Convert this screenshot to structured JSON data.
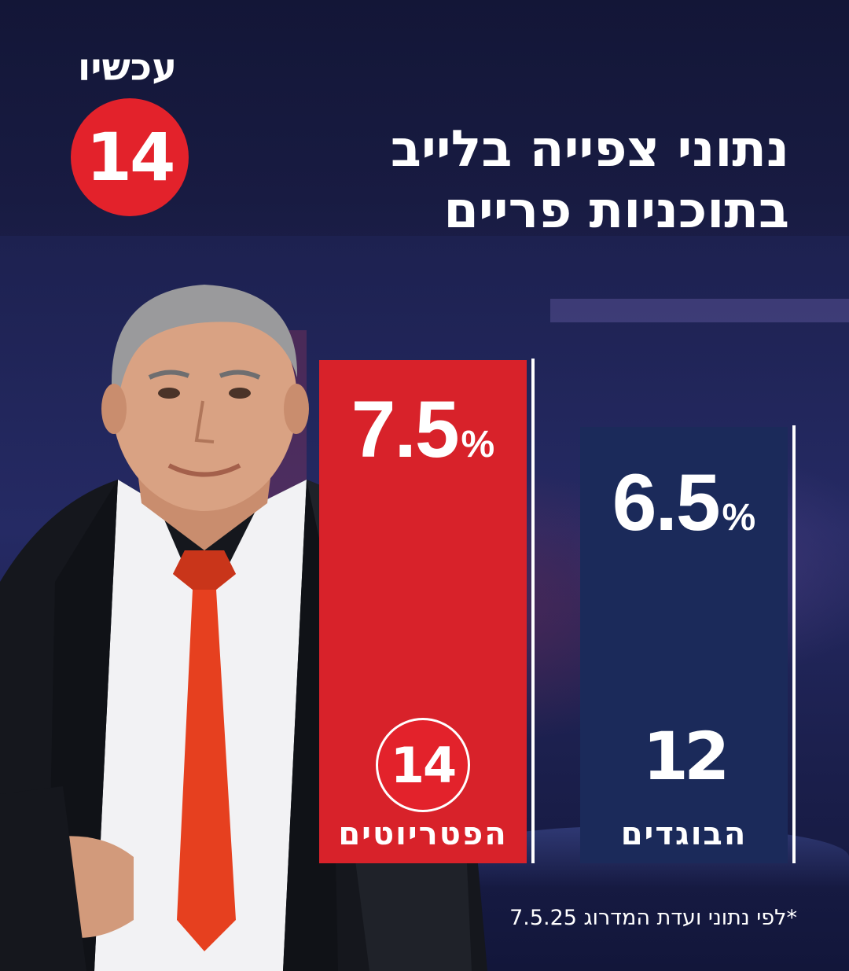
{
  "brand": {
    "word": "עכשיו",
    "number": "14",
    "red": "#e3222b",
    "navy": "#1b2a5a"
  },
  "title": {
    "line1": "נתוני צפייה  בלייב",
    "line2": "בתוכניות פריים"
  },
  "chart_data": {
    "type": "bar",
    "title": "נתוני צפייה בלייב בתוכניות פריים",
    "unit": "%",
    "categories": [
      "הפטריוטים",
      "הבוגדים"
    ],
    "values": [
      7.5,
      6.5
    ],
    "value_labels": [
      "7.5",
      "6.5"
    ],
    "channel_logos": [
      "14",
      "12"
    ],
    "colors": [
      "#d8222a",
      "#1b2a5a"
    ]
  },
  "footnote": "*לפי נתוני ועדת המדרוג 7.5.25"
}
